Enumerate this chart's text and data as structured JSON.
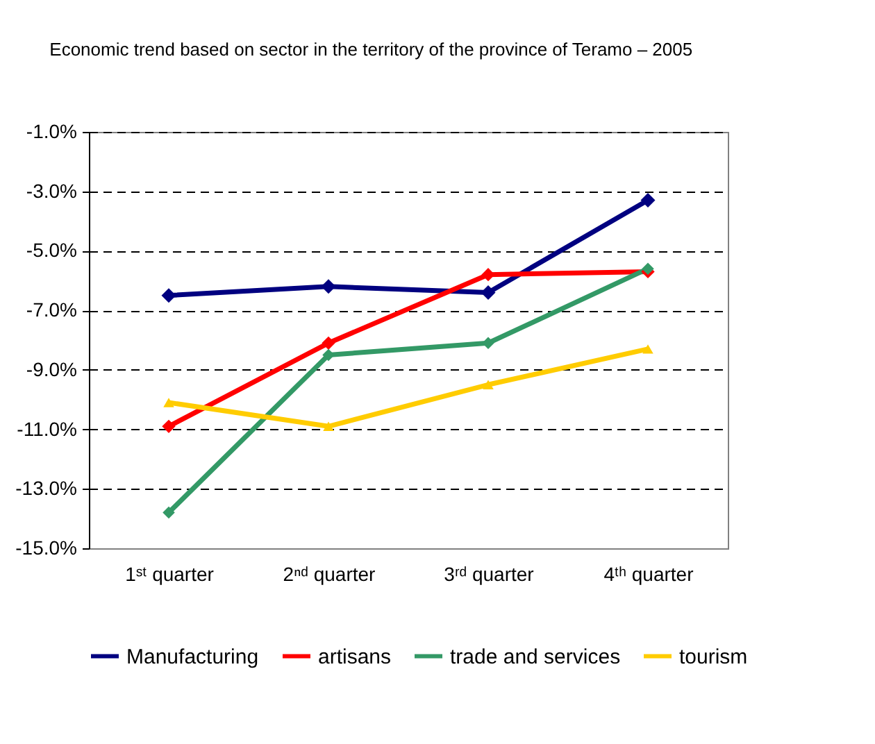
{
  "chart_data": {
    "type": "line",
    "title": "Economic trend based on sector in the territory of the province of Teramo – 2005",
    "categories": [
      "1ˢᵗ quarter",
      "2ⁿᵈ quarter",
      "3ʳᵈ quarter",
      "4ᵗʰ quarter"
    ],
    "series": [
      {
        "name": "Manufacturing",
        "color": "#000080",
        "values": [
          -6.5,
          -6.2,
          -6.4,
          -3.3
        ]
      },
      {
        "name": "artisans",
        "color": "#ff0000",
        "values": [
          -10.9,
          -8.1,
          -5.8,
          -5.7
        ]
      },
      {
        "name": "trade and services",
        "color": "#339966",
        "values": [
          -13.8,
          -8.5,
          -8.1,
          -5.6
        ]
      },
      {
        "name": "tourism",
        "color": "#ffcc00",
        "marker": "triangle",
        "values": [
          -10.1,
          -10.9,
          -9.5,
          -8.3
        ]
      }
    ],
    "ylim": [
      -15,
      -1
    ],
    "yticks": [
      {
        "value": -1,
        "label": "-1.0%"
      },
      {
        "value": -3,
        "label": "-3.0%"
      },
      {
        "value": -5,
        "label": "-5.0%"
      },
      {
        "value": -7,
        "label": "-7.0%"
      },
      {
        "value": -9,
        "label": "-9.0%"
      },
      {
        "value": -11,
        "label": "-11.0%"
      },
      {
        "value": -13,
        "label": "-13.0%"
      },
      {
        "value": -15,
        "label": "-15.0%"
      }
    ],
    "grid": "y",
    "legend": "bottom",
    "marker": "diamond"
  }
}
